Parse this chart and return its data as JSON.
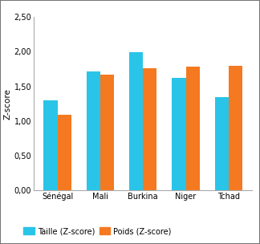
{
  "categories": [
    "Sénégal",
    "Mali",
    "Burkina",
    "Niger",
    "Tchad"
  ],
  "taille_values": [
    1.3,
    1.72,
    1.99,
    1.62,
    1.35
  ],
  "poids_values": [
    1.09,
    1.67,
    1.76,
    1.78,
    1.8
  ],
  "taille_color": "#29C4E8",
  "poids_color": "#F47920",
  "ylabel": "Z-score",
  "ylim": [
    0,
    2.5
  ],
  "yticks": [
    0.0,
    0.5,
    1.0,
    1.5,
    2.0,
    2.5
  ],
  "ytick_labels": [
    "0,00",
    "0,50",
    "1,00",
    "1,50",
    "2,00",
    "2,50"
  ],
  "legend_taille": "Taille (Z-score)",
  "legend_poids": "Poids (Z-score)",
  "bar_width": 0.32,
  "background_color": "#ffffff",
  "plot_bg_color": "#ffffff",
  "border_color": "#888888",
  "tick_label_fontsize": 7,
  "ylabel_fontsize": 7.5
}
